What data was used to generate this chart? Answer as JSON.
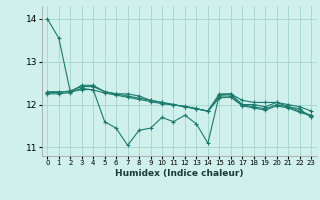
{
  "xlabel": "Humidex (Indice chaleur)",
  "bg_color": "#cff0eb",
  "grid_color": "#aad8d0",
  "line_color": "#1a7a6e",
  "xlim": [
    -0.5,
    23.5
  ],
  "ylim": [
    10.8,
    14.3
  ],
  "xticks": [
    0,
    1,
    2,
    3,
    4,
    5,
    6,
    7,
    8,
    9,
    10,
    11,
    12,
    13,
    14,
    15,
    16,
    17,
    18,
    19,
    20,
    21,
    22,
    23
  ],
  "yticks": [
    11,
    12,
    13,
    14
  ],
  "series": [
    [
      14.0,
      13.55,
      12.3,
      12.45,
      12.45,
      12.3,
      12.25,
      12.25,
      12.2,
      12.1,
      12.05,
      12.0,
      11.95,
      11.9,
      11.85,
      12.25,
      12.25,
      12.1,
      12.05,
      12.05,
      12.05,
      12.0,
      11.95,
      11.85
    ],
    [
      12.3,
      12.3,
      12.3,
      12.35,
      12.35,
      11.6,
      11.45,
      11.05,
      11.4,
      11.45,
      11.7,
      11.6,
      11.75,
      11.55,
      11.1,
      12.22,
      12.25,
      12.0,
      12.0,
      11.95,
      12.05,
      11.95,
      11.9,
      11.7
    ],
    [
      12.28,
      12.28,
      12.32,
      12.42,
      12.42,
      12.3,
      12.25,
      12.2,
      12.15,
      12.1,
      12.05,
      12.0,
      11.95,
      11.9,
      11.85,
      12.2,
      12.2,
      12.0,
      11.95,
      11.9,
      12.0,
      11.95,
      11.85,
      11.75
    ],
    [
      12.25,
      12.25,
      12.28,
      12.38,
      12.34,
      12.27,
      12.22,
      12.17,
      12.12,
      12.07,
      12.02,
      11.99,
      11.96,
      11.91,
      11.84,
      12.16,
      12.17,
      11.97,
      11.92,
      11.87,
      11.97,
      11.92,
      11.82,
      11.74
    ]
  ]
}
